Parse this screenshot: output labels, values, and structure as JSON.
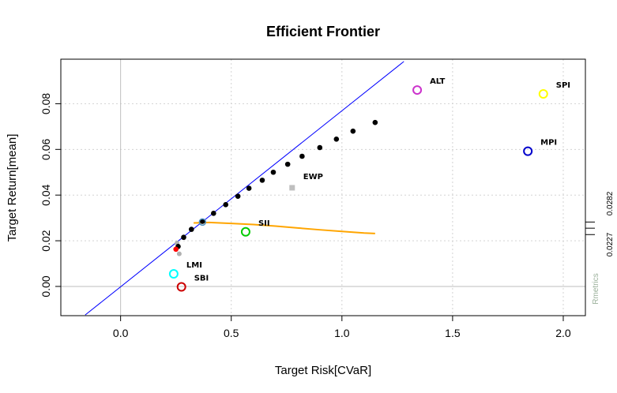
{
  "chart_data": {
    "type": "scatter",
    "title": "Efficient Frontier",
    "xlabel": "Target Risk[CVaR]",
    "ylabel": "Target Return[mean]",
    "xlim": [
      -0.27,
      2.1
    ],
    "ylim": [
      -0.0128,
      0.0995
    ],
    "xticks": [
      "0.0",
      "0.5",
      "1.0",
      "1.5",
      "2.0"
    ],
    "xtick_values": [
      0,
      0.5,
      1.0,
      1.5,
      2.0
    ],
    "yticks": [
      "0.00",
      "0.02",
      "0.04",
      "0.06",
      "0.08"
    ],
    "ytick_values": [
      0,
      0.02,
      0.04,
      0.06,
      0.08
    ],
    "grid": true,
    "frontier": {
      "x": [
        0.26,
        0.285,
        0.32,
        0.37,
        0.42,
        0.475,
        0.53,
        0.58,
        0.64,
        0.69,
        0.755,
        0.82,
        0.9,
        0.975,
        1.05,
        1.15
      ],
      "y": [
        0.0175,
        0.0215,
        0.025,
        0.0285,
        0.032,
        0.0358,
        0.0395,
        0.043,
        0.0465,
        0.05,
        0.0535,
        0.057,
        0.0608,
        0.0645,
        0.068,
        0.0718
      ],
      "color": "#000000"
    },
    "tangency_line": {
      "x": [
        -0.16,
        1.28
      ],
      "y": [
        -0.0125,
        0.0985
      ],
      "color": "#0000ff"
    },
    "inefficient_curve": {
      "x": [
        0.33,
        0.4,
        0.5,
        0.6,
        0.7,
        0.8,
        0.9,
        1.0,
        1.1,
        1.15
      ],
      "y": [
        0.0278,
        0.028,
        0.0276,
        0.0271,
        0.0264,
        0.0256,
        0.0248,
        0.0241,
        0.0234,
        0.0232
      ],
      "color": "#ffa500"
    },
    "min_variance_point": {
      "x": 0.25,
      "y": 0.0163,
      "color": "#ff0000"
    },
    "gray_points": [
      {
        "x": 0.265,
        "y": 0.0143
      },
      {
        "x": 0.255,
        "y": 0.019
      }
    ],
    "tangency_point": {
      "x": 0.37,
      "y": 0.0282,
      "color": "#4a90c2"
    },
    "assets": [
      {
        "name": "ALT",
        "x": 1.34,
        "y": 0.086,
        "color": "#cc33cc"
      },
      {
        "name": "SPI",
        "x": 1.91,
        "y": 0.0843,
        "color": "#ffff00"
      },
      {
        "name": "MPI",
        "x": 1.84,
        "y": 0.0592,
        "color": "#0000cc"
      },
      {
        "name": "SII",
        "x": 0.565,
        "y": 0.0239,
        "color": "#00cc00"
      },
      {
        "name": "LMI",
        "x": 0.24,
        "y": 0.0055,
        "color": "#00ffff"
      },
      {
        "name": "SBI",
        "x": 0.275,
        "y": -0.0002,
        "color": "#cc0000"
      }
    ],
    "ewp": {
      "name": "EWP",
      "x": 0.775,
      "y": 0.0432,
      "color": "#bfbfbf"
    },
    "right_margin_labels": [
      "0.0282",
      "0.0227"
    ],
    "right_margin_ticks": [
      0.0282,
      0.0255,
      0.0227
    ],
    "watermark": "Rmetrics"
  }
}
